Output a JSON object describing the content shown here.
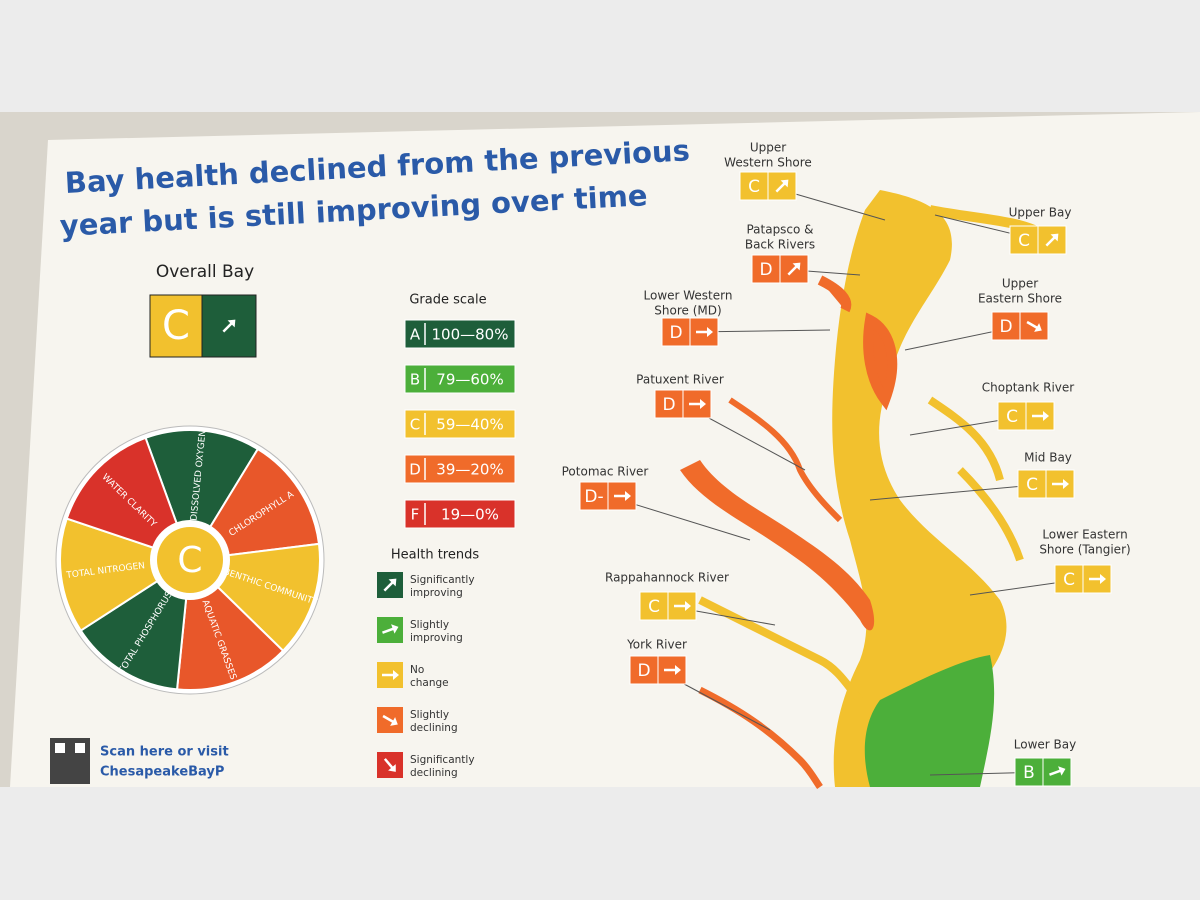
{
  "poster": {
    "title_lines": [
      "Bay health declined from the previous",
      "year but is still improving over time"
    ],
    "overall": {
      "label": "Overall Bay",
      "grade": "C"
    },
    "wheel": {
      "center_grade": "C",
      "segments": [
        "DISSOLVED OXYGEN",
        "CHLOROPHYLL A",
        "BENTHIC COMMUNITY",
        "AQUATIC GRASSES",
        "TOTAL PHOSPHORUS",
        "TOTAL NITROGEN",
        "WATER CLARITY"
      ]
    },
    "grade_scale": {
      "title": "Grade scale",
      "items": [
        {
          "grade": "A",
          "range": "100—80%"
        },
        {
          "grade": "B",
          "range": "79—60%"
        },
        {
          "grade": "C",
          "range": "59—40%"
        },
        {
          "grade": "D",
          "range": "39—20%"
        },
        {
          "grade": "F",
          "range": "19—0%"
        }
      ]
    },
    "health_trends": {
      "title": "Health trends",
      "items": [
        [
          "Significantly",
          "improving"
        ],
        [
          "Slightly",
          "improving"
        ],
        [
          "No",
          "change"
        ],
        [
          "Slightly",
          "declining"
        ],
        [
          "Significantly",
          "declining"
        ]
      ]
    },
    "scan": [
      "Scan here or visit",
      "ChesapeakeBayP"
    ],
    "regions": [
      {
        "name": [
          "Upper",
          "Western Shore"
        ],
        "grade": "C"
      },
      {
        "name": [
          "Patapsco &",
          "Back Rivers"
        ],
        "grade": "D"
      },
      {
        "name": [
          "Lower Western",
          "Shore (MD)"
        ],
        "grade": "D"
      },
      {
        "name": [
          "Patuxent River"
        ],
        "grade": "D"
      },
      {
        "name": [
          "Potomac River"
        ],
        "grade": "D-"
      },
      {
        "name": [
          "Rappahannock River"
        ],
        "grade": "C"
      },
      {
        "name": [
          "York River"
        ],
        "grade": "D"
      },
      {
        "name": [
          "Upper Bay"
        ],
        "grade": "C"
      },
      {
        "name": [
          "Upper",
          "Eastern Shore"
        ],
        "grade": "D"
      },
      {
        "name": [
          "Choptank River"
        ],
        "grade": "C"
      },
      {
        "name": [
          "Mid Bay"
        ],
        "grade": "C"
      },
      {
        "name": [
          "Lower Eastern",
          "Shore (Tangier)"
        ],
        "grade": "C"
      },
      {
        "name": [
          "Lower Bay"
        ],
        "grade": "B"
      }
    ]
  }
}
